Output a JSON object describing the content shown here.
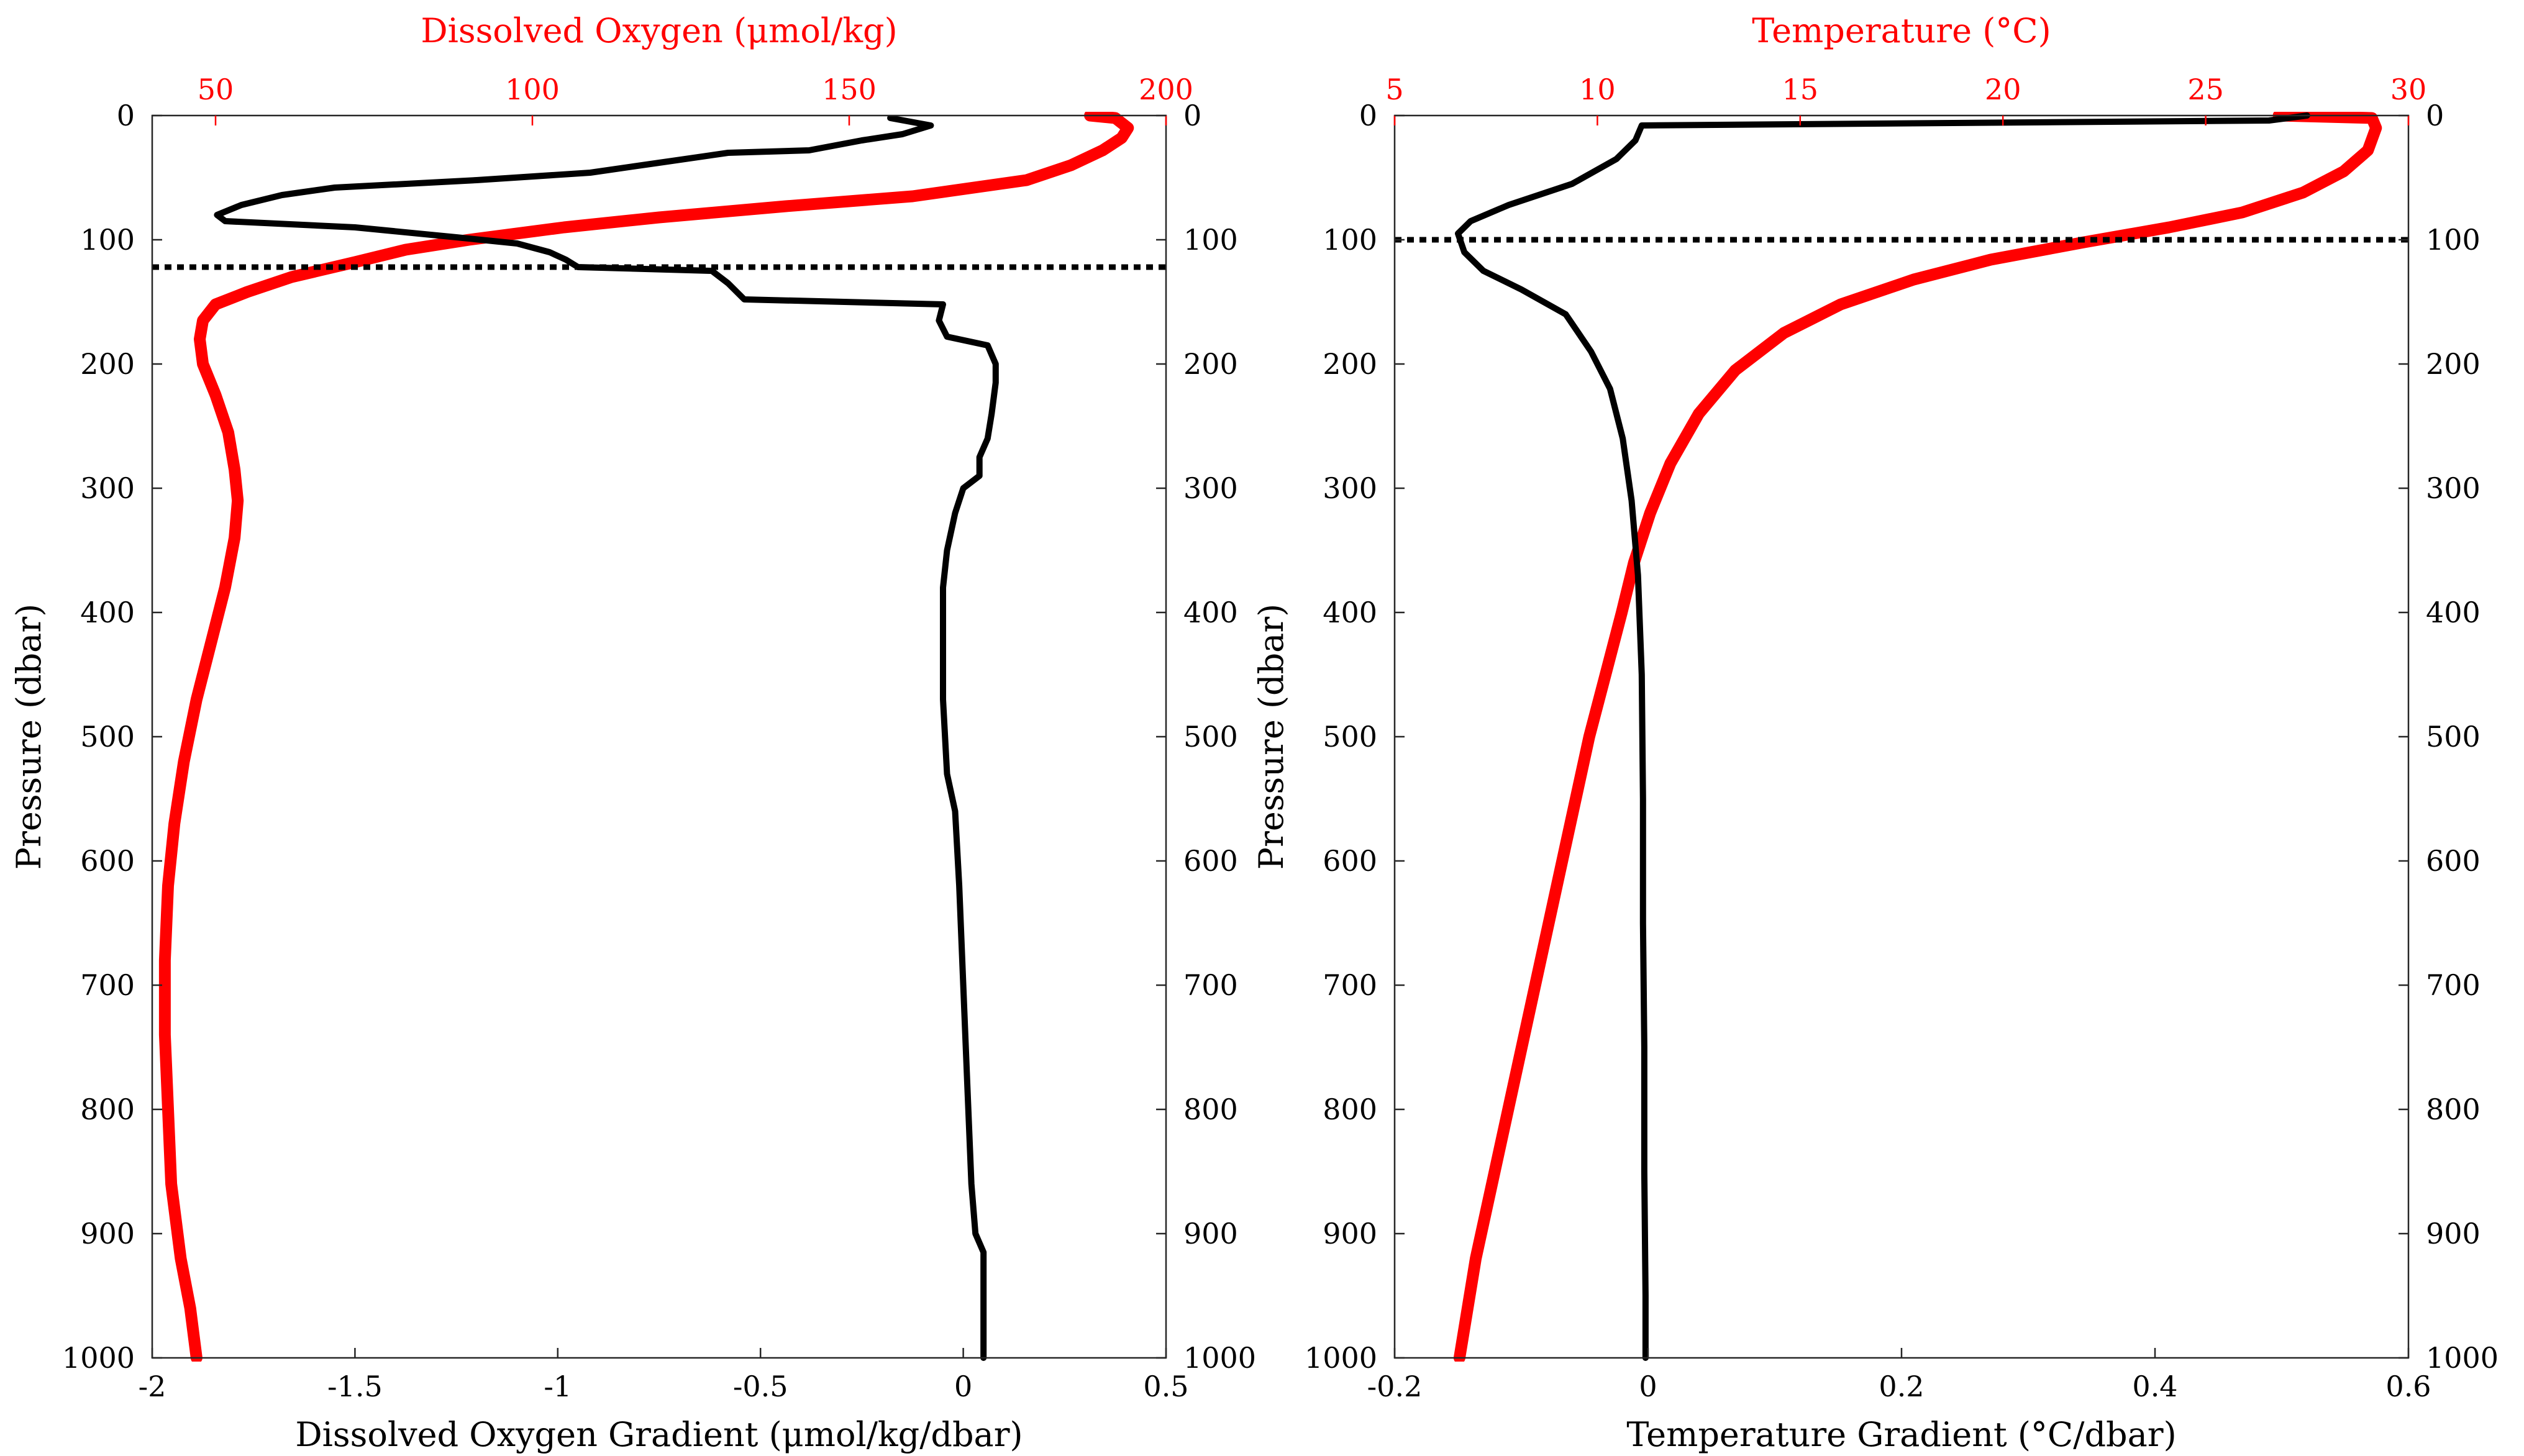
{
  "chart_data": [
    {
      "type": "line",
      "panel": "left",
      "ylabel": "Pressure (dbar)",
      "ylim": [
        0,
        1000
      ],
      "y_ticks": [
        "0",
        "100",
        "200",
        "300",
        "400",
        "500",
        "600",
        "700",
        "800",
        "900",
        "1000"
      ],
      "right_y_ticks": [
        "0",
        "100",
        "200",
        "300",
        "400",
        "500",
        "600",
        "700",
        "800",
        "900",
        "1000"
      ],
      "y_reversed": true,
      "xlabel_bottom": "Dissolved Oxygen Gradient (μmol/kg/dbar)",
      "xlim_bottom": [
        -2,
        0.5
      ],
      "x_ticks_bottom": [
        "-2",
        "-1.5",
        "-1",
        "-0.5",
        "0",
        "0.5"
      ],
      "xlabel_top": "Dissolved Oxygen (μmol/kg)",
      "xlim_top": [
        40,
        200
      ],
      "x_ticks_top": [
        "50",
        "100",
        "150",
        "200"
      ],
      "hline": {
        "y": 122,
        "style": "dotted",
        "color": "#000000"
      },
      "grid": false,
      "series": [
        {
          "axis": "top",
          "color": "#ff0000",
          "points": [
            [
              188,
              0
            ],
            [
              192,
              2
            ],
            [
              194,
              10
            ],
            [
              193,
              18
            ],
            [
              190,
              28
            ],
            [
              185,
              40
            ],
            [
              178,
              52
            ],
            [
              160,
              65
            ],
            [
              140,
              73
            ],
            [
              120,
              82
            ],
            [
              105,
              90
            ],
            [
              90,
              100
            ],
            [
              80,
              108
            ],
            [
              72,
              118
            ],
            [
              62,
              130
            ],
            [
              55,
              142
            ],
            [
              50,
              152
            ],
            [
              48,
              165
            ],
            [
              47.5,
              180
            ],
            [
              48,
              200
            ],
            [
              50,
              225
            ],
            [
              52,
              255
            ],
            [
              53,
              285
            ],
            [
              53.5,
              310
            ],
            [
              53,
              340
            ],
            [
              51.5,
              380
            ],
            [
              49.5,
              420
            ],
            [
              47,
              470
            ],
            [
              45,
              520
            ],
            [
              43.5,
              570
            ],
            [
              42.5,
              620
            ],
            [
              42,
              680
            ],
            [
              42,
              740
            ],
            [
              42.5,
              800
            ],
            [
              43,
              860
            ],
            [
              44.5,
              920
            ],
            [
              46,
              960
            ],
            [
              47,
              1000
            ]
          ]
        },
        {
          "axis": "bottom",
          "color": "#000000",
          "points": [
            [
              -0.18,
              2
            ],
            [
              -0.08,
              8
            ],
            [
              -0.15,
              15
            ],
            [
              -0.25,
              20
            ],
            [
              -0.38,
              28
            ],
            [
              -0.58,
              30
            ],
            [
              -0.75,
              38
            ],
            [
              -0.92,
              46
            ],
            [
              -1.2,
              52
            ],
            [
              -1.55,
              58
            ],
            [
              -1.68,
              64
            ],
            [
              -1.78,
              72
            ],
            [
              -1.84,
              80
            ],
            [
              -1.82,
              85
            ],
            [
              -1.5,
              90
            ],
            [
              -1.25,
              98
            ],
            [
              -1.1,
              103
            ],
            [
              -1.02,
              110
            ],
            [
              -0.98,
              116
            ],
            [
              -0.95,
              122
            ],
            [
              -0.62,
              125
            ],
            [
              -0.58,
              135
            ],
            [
              -0.54,
              148
            ],
            [
              -0.05,
              152
            ],
            [
              -0.06,
              165
            ],
            [
              -0.04,
              178
            ],
            [
              0.06,
              185
            ],
            [
              0.08,
              200
            ],
            [
              0.08,
              215
            ],
            [
              0.07,
              240
            ],
            [
              0.06,
              260
            ],
            [
              0.04,
              275
            ],
            [
              0.04,
              290
            ],
            [
              0.0,
              300
            ],
            [
              -0.02,
              320
            ],
            [
              -0.04,
              350
            ],
            [
              -0.05,
              380
            ],
            [
              -0.05,
              420
            ],
            [
              -0.05,
              470
            ],
            [
              -0.04,
              530
            ],
            [
              -0.02,
              560
            ],
            [
              -0.01,
              620
            ],
            [
              0.0,
              700
            ],
            [
              0.01,
              780
            ],
            [
              0.02,
              860
            ],
            [
              0.03,
              900
            ],
            [
              0.05,
              915
            ],
            [
              0.05,
              960
            ],
            [
              0.05,
              1000
            ]
          ]
        }
      ]
    },
    {
      "type": "line",
      "panel": "right",
      "ylabel": "Pressure (dbar)",
      "ylim": [
        0,
        1000
      ],
      "y_ticks": [
        "0",
        "100",
        "200",
        "300",
        "400",
        "500",
        "600",
        "700",
        "800",
        "900",
        "1000"
      ],
      "right_y_ticks": [
        "0",
        "100",
        "200",
        "300",
        "400",
        "500",
        "600",
        "700",
        "800",
        "900",
        "1000"
      ],
      "y_reversed": true,
      "xlabel_bottom": "Temperature Gradient (°C/dbar)",
      "xlim_bottom": [
        -0.2,
        0.6
      ],
      "x_ticks_bottom": [
        "-0.2",
        "0",
        "0.2",
        "0.4",
        "0.6"
      ],
      "xlabel_top": "Temperature (°C)",
      "xlim_top": [
        5,
        30
      ],
      "x_ticks_top": [
        "5",
        "10",
        "15",
        "20",
        "25",
        "30"
      ],
      "hline": {
        "y": 100,
        "style": "dotted",
        "color": "#000000"
      },
      "grid": false,
      "series": [
        {
          "axis": "top",
          "color": "#ff0000",
          "points": [
            [
              26.8,
              0
            ],
            [
              29.1,
              2
            ],
            [
              29.2,
              10
            ],
            [
              29.0,
              28
            ],
            [
              28.4,
              45
            ],
            [
              27.4,
              62
            ],
            [
              25.9,
              78
            ],
            [
              24.1,
              90
            ],
            [
              22.0,
              102
            ],
            [
              19.7,
              116
            ],
            [
              17.8,
              132
            ],
            [
              16.0,
              152
            ],
            [
              14.6,
              175
            ],
            [
              13.4,
              205
            ],
            [
              12.5,
              240
            ],
            [
              11.8,
              280
            ],
            [
              11.3,
              320
            ],
            [
              10.9,
              360
            ],
            [
              10.6,
              400
            ],
            [
              10.2,
              450
            ],
            [
              9.8,
              500
            ],
            [
              9.4,
              560
            ],
            [
              9.0,
              620
            ],
            [
              8.6,
              680
            ],
            [
              8.2,
              740
            ],
            [
              7.8,
              800
            ],
            [
              7.4,
              860
            ],
            [
              7.0,
              920
            ],
            [
              6.6,
              1000
            ]
          ]
        },
        {
          "axis": "bottom",
          "color": "#000000",
          "points": [
            [
              -0.005,
              8
            ],
            [
              -0.01,
              20
            ],
            [
              -0.025,
              35
            ],
            [
              -0.06,
              55
            ],
            [
              -0.11,
              72
            ],
            [
              -0.14,
              85
            ],
            [
              -0.15,
              95
            ],
            [
              -0.145,
              110
            ],
            [
              -0.13,
              125
            ],
            [
              -0.1,
              140
            ],
            [
              -0.065,
              160
            ],
            [
              -0.045,
              190
            ],
            [
              -0.03,
              220
            ],
            [
              -0.02,
              260
            ],
            [
              -0.013,
              310
            ],
            [
              -0.008,
              370
            ],
            [
              -0.005,
              450
            ],
            [
              -0.004,
              550
            ],
            [
              -0.004,
              650
            ],
            [
              -0.003,
              750
            ],
            [
              -0.003,
              850
            ],
            [
              -0.002,
              950
            ],
            [
              -0.002,
              1000
            ]
          ],
          "surface_jump": [
            [
              -0.005,
              8
            ],
            [
              0.49,
              4
            ],
            [
              0.52,
              0
            ]
          ]
        }
      ]
    }
  ]
}
